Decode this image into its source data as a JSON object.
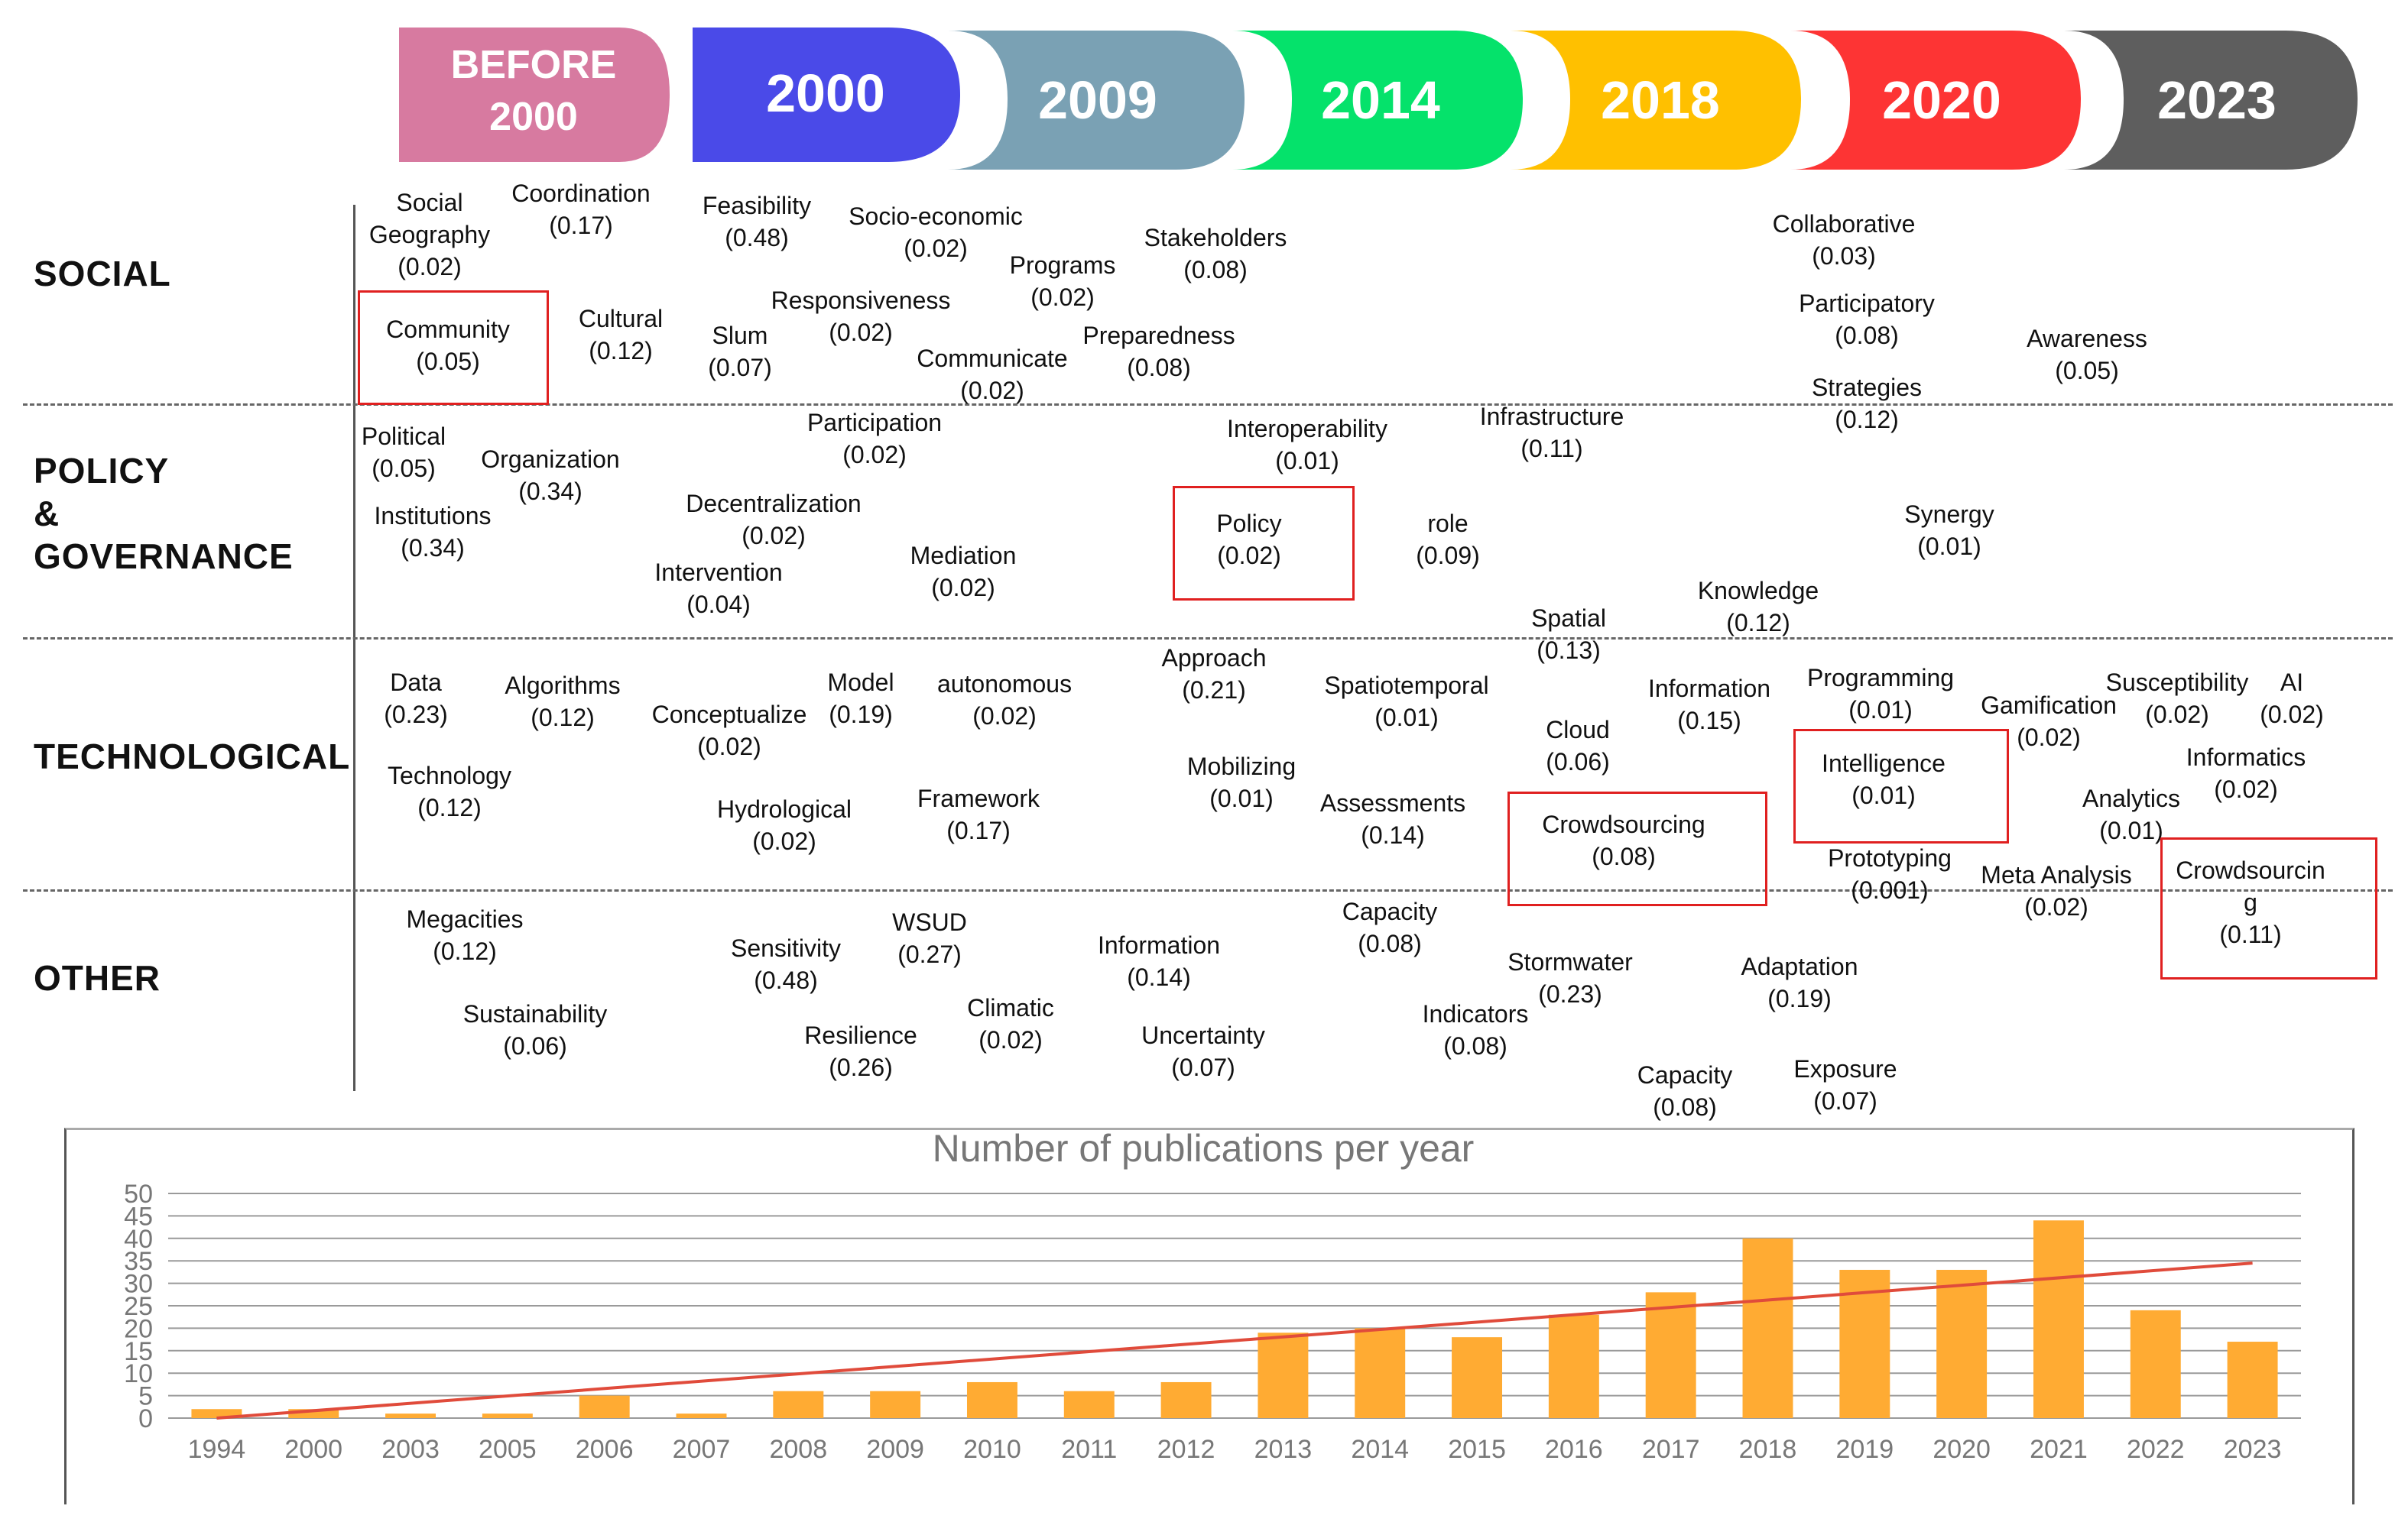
{
  "timeline": [
    {
      "label": "BEFORE\n2000",
      "color": "#d77aa0"
    },
    {
      "label": "2000",
      "color": "#4a4ae8"
    },
    {
      "label": "2009",
      "color": "#7aa1b4"
    },
    {
      "label": "2014",
      "color": "#05e26b"
    },
    {
      "label": "2018",
      "color": "#ffc000"
    },
    {
      "label": "2020",
      "color": "#fd3434"
    },
    {
      "label": "2023",
      "color": "#5e5e5e"
    }
  ],
  "categories": {
    "social": "SOCIAL",
    "policy": "POLICY\n&\nGOVERNANCE",
    "technological": "TECHNOLOGICAL",
    "other": "OTHER"
  },
  "terms": [
    {
      "label": "Social\nGeography",
      "value": "(0.02)"
    },
    {
      "label": "Coordination",
      "value": "(0.17)"
    },
    {
      "label": "Feasibility",
      "value": "(0.48)"
    },
    {
      "label": "Socio-economic",
      "value": "(0.02)"
    },
    {
      "label": "Programs",
      "value": "(0.02)"
    },
    {
      "label": "Stakeholders",
      "value": "(0.08)"
    },
    {
      "label": "Collaborative",
      "value": "(0.03)"
    },
    {
      "label": "Community",
      "value": "(0.05)"
    },
    {
      "label": "Cultural",
      "value": "(0.12)"
    },
    {
      "label": "Slum",
      "value": "(0.07)"
    },
    {
      "label": "Responsiveness",
      "value": "(0.02)"
    },
    {
      "label": "Communicate",
      "value": "(0.02)"
    },
    {
      "label": "Preparedness",
      "value": "(0.08)"
    },
    {
      "label": "Participatory",
      "value": "(0.08)"
    },
    {
      "label": "Strategies",
      "value": "(0.12)"
    },
    {
      "label": "Awareness",
      "value": "(0.05)"
    },
    {
      "label": "Political",
      "value": "(0.05)"
    },
    {
      "label": "Organization",
      "value": "(0.34)"
    },
    {
      "label": "Participation",
      "value": "(0.02)"
    },
    {
      "label": "Interoperability",
      "value": "(0.01)"
    },
    {
      "label": "Infrastructure",
      "value": "(0.11)"
    },
    {
      "label": "Institutions",
      "value": "(0.34)"
    },
    {
      "label": "Decentralization",
      "value": "(0.02)"
    },
    {
      "label": "Policy",
      "value": "(0.02)"
    },
    {
      "label": "role",
      "value": "(0.09)"
    },
    {
      "label": "Synergy",
      "value": "(0.01)"
    },
    {
      "label": "Intervention",
      "value": "(0.04)"
    },
    {
      "label": "Mediation",
      "value": "(0.02)"
    },
    {
      "label": "Knowledge",
      "value": "(0.12)"
    },
    {
      "label": "Spatial",
      "value": "(0.13)"
    },
    {
      "label": "Approach",
      "value": "(0.21)"
    },
    {
      "label": "Data",
      "value": "(0.23)"
    },
    {
      "label": "Algorithms",
      "value": "(0.12)"
    },
    {
      "label": "Model",
      "value": "(0.19)"
    },
    {
      "label": "autonomous",
      "value": "(0.02)"
    },
    {
      "label": "Spatiotemporal",
      "value": "(0.01)"
    },
    {
      "label": "Information",
      "value": "(0.15)"
    },
    {
      "label": "Programming",
      "value": "(0.01)"
    },
    {
      "label": "Susceptibility",
      "value": "(0.02)"
    },
    {
      "label": "AI",
      "value": "(0.02)"
    },
    {
      "label": "Conceptualize",
      "value": "(0.02)"
    },
    {
      "label": "Gamification",
      "value": "(0.02)"
    },
    {
      "label": "Cloud",
      "value": "(0.06)"
    },
    {
      "label": "Intelligence",
      "value": "(0.01)"
    },
    {
      "label": "Informatics",
      "value": "(0.02)"
    },
    {
      "label": "Technology",
      "value": "(0.12)"
    },
    {
      "label": "Mobilizing",
      "value": "(0.01)"
    },
    {
      "label": "Framework",
      "value": "(0.17)"
    },
    {
      "label": "Hydrological",
      "value": "(0.02)"
    },
    {
      "label": "Assessments",
      "value": "(0.14)"
    },
    {
      "label": "Crowdsourcing",
      "value": "(0.08)"
    },
    {
      "label": "Analytics",
      "value": "(0.01)"
    },
    {
      "label": "Prototyping",
      "value": "(0.001)"
    },
    {
      "label": "Meta Analysis",
      "value": "(0.02)"
    },
    {
      "label": "Crowdsourcin\ng",
      "value": "(0.11)"
    },
    {
      "label": "Megacities",
      "value": "(0.12)"
    },
    {
      "label": "Sensitivity",
      "value": "(0.48)"
    },
    {
      "label": "WSUD",
      "value": "(0.27)"
    },
    {
      "label": "Information",
      "value": "(0.14)"
    },
    {
      "label": "Capacity",
      "value": "(0.08)"
    },
    {
      "label": "Stormwater",
      "value": "(0.23)"
    },
    {
      "label": "Adaptation",
      "value": "(0.19)"
    },
    {
      "label": "Sustainability",
      "value": "(0.06)"
    },
    {
      "label": "Climatic",
      "value": "(0.02)"
    },
    {
      "label": "Indicators",
      "value": "(0.08)"
    },
    {
      "label": "Resilience",
      "value": "(0.26)"
    },
    {
      "label": "Uncertainty",
      "value": "(0.07)"
    },
    {
      "label": "Capacity",
      "value": "(0.08)"
    },
    {
      "label": "Exposure",
      "value": "(0.07)"
    }
  ],
  "chart_data": {
    "type": "bar",
    "title": "Number of publications per year",
    "categories": [
      "1994",
      "2000",
      "2003",
      "2005",
      "2006",
      "2007",
      "2008",
      "2009",
      "2010",
      "2011",
      "2012",
      "2013",
      "2014",
      "2015",
      "2016",
      "2017",
      "2018",
      "2019",
      "2020",
      "2021",
      "2022",
      "2023"
    ],
    "values": [
      2,
      2,
      1,
      1,
      5,
      1,
      6,
      6,
      8,
      6,
      8,
      19,
      20,
      18,
      23,
      28,
      40,
      33,
      33,
      44,
      24,
      17
    ],
    "trendline": {
      "start": 0,
      "end": 34.5
    },
    "yticks": [
      0,
      5,
      10,
      15,
      20,
      25,
      30,
      35,
      40,
      45,
      50
    ],
    "ylim": [
      0,
      50
    ],
    "bar_color": "#ffab33",
    "trend_color": "#e04b3b",
    "grid": true,
    "xlabel": "",
    "ylabel": ""
  }
}
